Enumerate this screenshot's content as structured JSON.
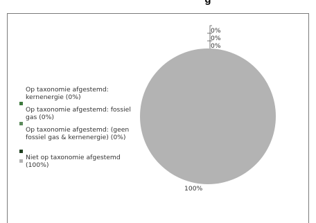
{
  "chart_data": {
    "type": "pie",
    "title": "g",
    "slices": [
      {
        "label": "Op taxonomie afgestemd: kernenergie (0%)",
        "value": 0,
        "color": "#3e7a3e",
        "data_label": "0%"
      },
      {
        "label": "Op taxonomie afgestemd: fossiel gas (0%)",
        "value": 0,
        "color": "#5d8b5d",
        "data_label": "0%"
      },
      {
        "label": "Op taxonomie afgestemd: (geen fossiel gas & kernenergie) (0%)",
        "value": 0,
        "color": "#1f3f1f",
        "data_label": "0%"
      },
      {
        "label": "Niet op taxonomie afgestemd (100%)",
        "value": 100,
        "color": "#b3b3b3",
        "data_label": "100%"
      }
    ],
    "legend_position": "left"
  }
}
